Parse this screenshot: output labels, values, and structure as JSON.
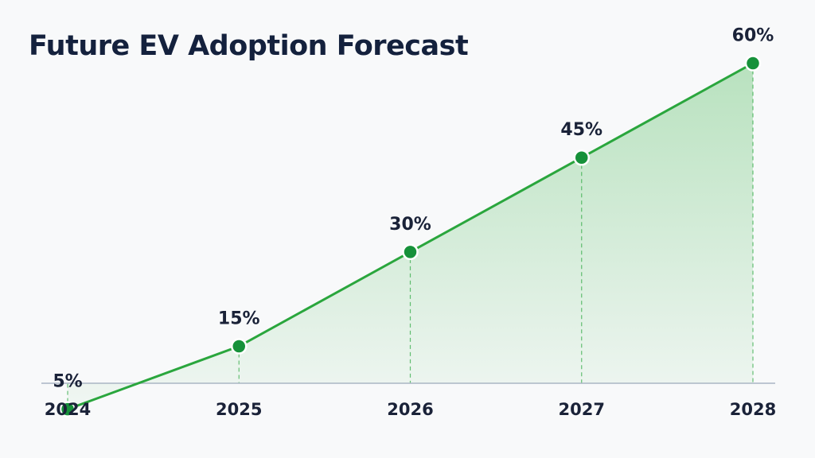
{
  "chart_data": {
    "type": "area",
    "title": "Future EV Adoption Forecast",
    "xlabel": "",
    "ylabel": "",
    "categories": [
      "2024",
      "2025",
      "2026",
      "2027",
      "2028"
    ],
    "series": [
      {
        "values": [
          5,
          15,
          30,
          45,
          60
        ],
        "value_labels": [
          "5%",
          "15%",
          "30%",
          "45%",
          "60%"
        ]
      }
    ],
    "ylim": [
      -2,
      65
    ],
    "grid": false,
    "legend": "none",
    "drop_lines": true,
    "colors": {
      "line": "#2aa63d",
      "marker": "#16913a",
      "fill": "#3cb44b",
      "axis": "#a9b6c4",
      "text": "#1a2238"
    }
  }
}
